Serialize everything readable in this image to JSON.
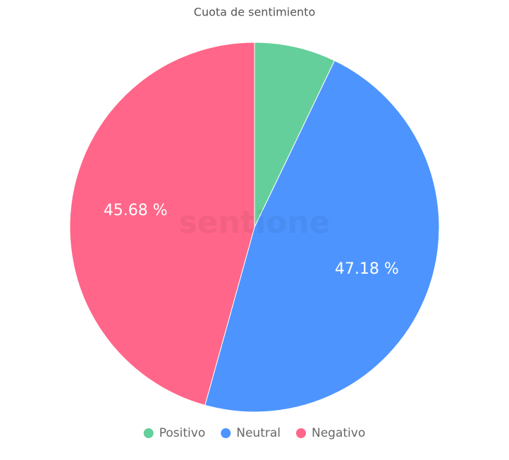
{
  "chart_data": {
    "type": "pie",
    "title": "Cuota de sentimiento",
    "categories": [
      "Positivo",
      "Neutral",
      "Negativo"
    ],
    "values": [
      7.14,
      47.18,
      45.68
    ],
    "value_labels": [
      null,
      "47.18 %",
      "45.68 %"
    ],
    "colors": [
      "#64cf9a",
      "#4d94ff",
      "#ff6689"
    ],
    "watermark": "sentione",
    "legend": "bottom"
  }
}
